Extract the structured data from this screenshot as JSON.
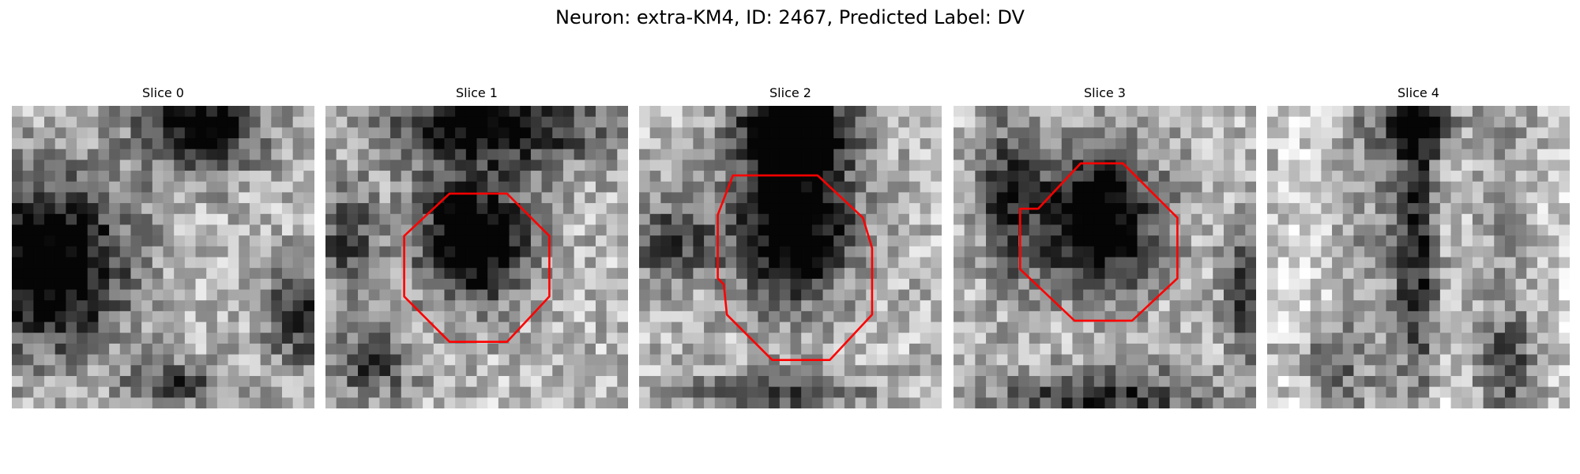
{
  "figure": {
    "title": "Neuron: extra-KM4, ID: 2467, Predicted Label: DV",
    "colors": {
      "contour": "#ff0000",
      "background": "#ffffff"
    },
    "panels": [
      {
        "title": "Slice 0",
        "has_contour": false
      },
      {
        "title": "Slice 1",
        "has_contour": true
      },
      {
        "title": "Slice 2",
        "has_contour": true
      },
      {
        "title": "Slice 3",
        "has_contour": true
      },
      {
        "title": "Slice 4",
        "has_contour": false
      }
    ]
  }
}
